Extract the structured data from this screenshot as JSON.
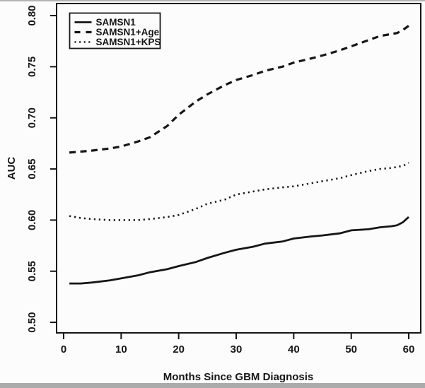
{
  "figure": {
    "background": "#fcfcfc",
    "ink_color": "#161616",
    "scan_top_line_color": "#b3b3b3",
    "scan_bottom_bar_color": "#ababab"
  },
  "chart_data": {
    "type": "line",
    "title": "",
    "xlabel": "Months Since GBM Diagnosis",
    "ylabel": "AUC",
    "xlim": [
      -1.23,
      62.09
    ],
    "ylim": [
      0.4897,
      0.8118
    ],
    "grid": false,
    "legend_position": "top-left",
    "x_ticks": [
      0,
      10,
      20,
      30,
      40,
      50,
      60
    ],
    "x_tick_labels": [
      "0",
      "10",
      "20",
      "30",
      "40",
      "50",
      "60"
    ],
    "y_ticks": [
      0.5,
      0.55,
      0.6,
      0.65,
      0.7,
      0.75,
      0.8
    ],
    "y_tick_labels": [
      "0.50",
      "0.55",
      "0.60",
      "0.65",
      "0.70",
      "0.75",
      "0.80"
    ],
    "x": [
      1,
      3,
      5,
      8,
      10,
      13,
      15,
      18,
      20,
      23,
      25,
      28,
      30,
      33,
      35,
      38,
      40,
      43,
      45,
      48,
      50,
      53,
      55,
      57,
      58,
      59,
      60
    ],
    "series": [
      {
        "name": "SAMSN1",
        "style": "solid",
        "values": [
          0.538,
          0.538,
          0.539,
          0.541,
          0.543,
          0.546,
          0.549,
          0.552,
          0.555,
          0.559,
          0.563,
          0.568,
          0.571,
          0.574,
          0.577,
          0.579,
          0.582,
          0.584,
          0.585,
          0.587,
          0.59,
          0.591,
          0.593,
          0.594,
          0.595,
          0.598,
          0.603
        ]
      },
      {
        "name": "SAMSN1+Age",
        "style": "dashed",
        "values": [
          0.666,
          0.667,
          0.668,
          0.67,
          0.672,
          0.677,
          0.681,
          0.692,
          0.703,
          0.716,
          0.723,
          0.732,
          0.737,
          0.742,
          0.746,
          0.75,
          0.754,
          0.758,
          0.761,
          0.766,
          0.77,
          0.776,
          0.78,
          0.782,
          0.783,
          0.786,
          0.79
        ]
      },
      {
        "name": "SAMSN1+KPS",
        "style": "dotted",
        "values": [
          0.604,
          0.602,
          0.601,
          0.6,
          0.6,
          0.6,
          0.601,
          0.603,
          0.605,
          0.611,
          0.616,
          0.62,
          0.625,
          0.628,
          0.63,
          0.632,
          0.633,
          0.636,
          0.638,
          0.641,
          0.644,
          0.648,
          0.65,
          0.651,
          0.652,
          0.653,
          0.656
        ]
      }
    ]
  }
}
